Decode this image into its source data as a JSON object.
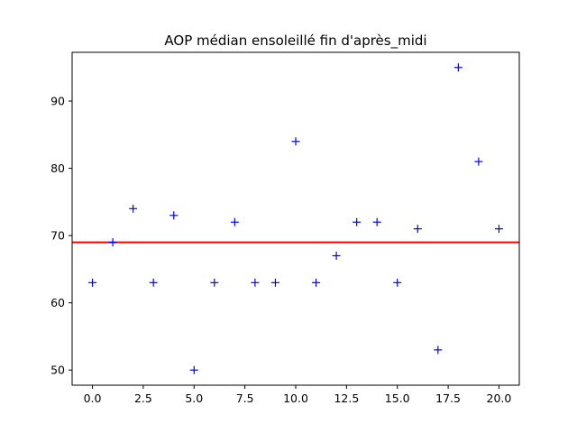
{
  "chart_data": {
    "type": "scatter",
    "title": "AOP médian ensoleillé fin d'après_midi",
    "xlabel": "",
    "ylabel": "",
    "xlim": [
      -1.0,
      21.0
    ],
    "ylim": [
      47.75,
      97.25
    ],
    "x_ticks": [
      0,
      2.5,
      5,
      7.5,
      10,
      12.5,
      15,
      17.5,
      20
    ],
    "x_tick_labels": [
      "0.0",
      "2.5",
      "5.0",
      "7.5",
      "10.0",
      "12.5",
      "15.0",
      "17.5",
      "20.0"
    ],
    "y_ticks": [
      50,
      60,
      70,
      80,
      90
    ],
    "y_tick_labels": [
      "50",
      "60",
      "70",
      "80",
      "90"
    ],
    "grid": false,
    "series": [
      {
        "marker": "+",
        "color": "#0000ff",
        "x": [
          0,
          1,
          2,
          3,
          4,
          5,
          6,
          7,
          8,
          9,
          10,
          11,
          12,
          13,
          14,
          15,
          16,
          17,
          18,
          19,
          20
        ],
        "y": [
          63,
          69,
          74,
          63,
          73,
          50,
          63,
          72,
          63,
          63,
          84,
          63,
          67,
          72,
          72,
          63,
          71,
          53,
          95,
          81,
          71
        ]
      }
    ],
    "reference_line": {
      "orientation": "horizontal",
      "y": 69,
      "color": "#ff0000"
    }
  }
}
